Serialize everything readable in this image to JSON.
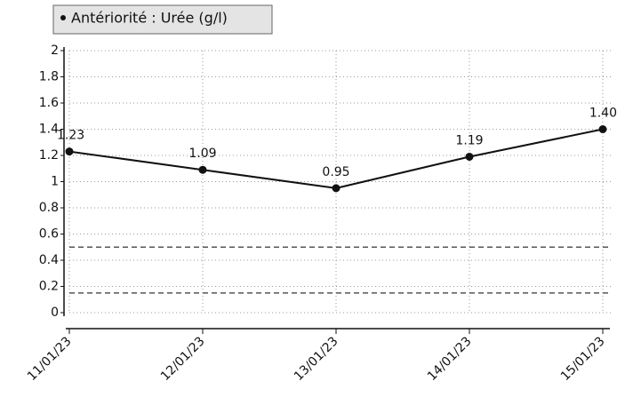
{
  "chart_data": {
    "type": "line",
    "legend": "Antériorité : Urée (g/l)",
    "categories": [
      "11/01/23",
      "12/01/23",
      "13/01/23",
      "14/01/23",
      "15/01/23"
    ],
    "series": [
      {
        "name": "Urée (g/l)",
        "color": "#111111",
        "values": [
          1.23,
          1.09,
          0.95,
          1.19,
          1.4
        ],
        "value_labels": [
          "1.23",
          "1.09",
          "0.95",
          "1.19",
          "1.40"
        ]
      }
    ],
    "reference_lines": [
      0.5,
      0.15
    ],
    "ylim": [
      0,
      2
    ],
    "yticks": [
      0,
      0.2,
      0.4,
      0.6,
      0.8,
      1,
      1.2,
      1.4,
      1.6,
      1.8,
      2
    ],
    "grid": true
  }
}
